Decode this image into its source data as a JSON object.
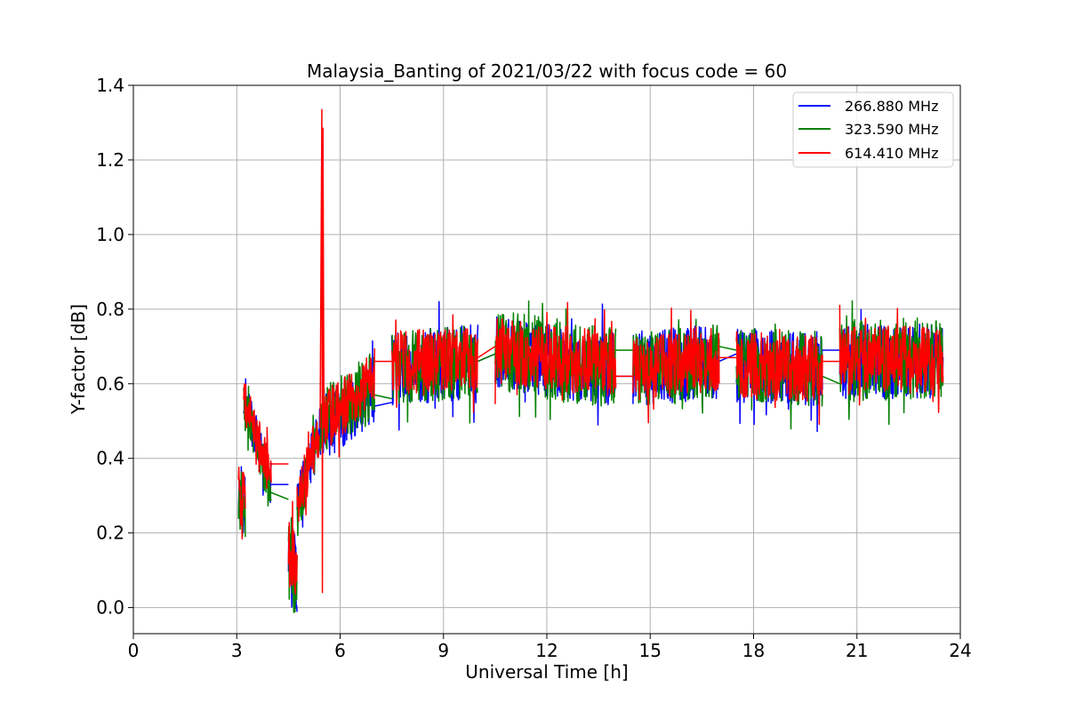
{
  "chart_data": {
    "type": "line",
    "title": "Malaysia_Banting of 2021/03/22 with focus code = 60",
    "xlabel": "Universal Time [h]",
    "ylabel": "Y-factor [dB]",
    "xlim": [
      0,
      24
    ],
    "ylim": [
      -0.07,
      1.4
    ],
    "xticks": [
      0,
      3,
      6,
      9,
      12,
      15,
      18,
      21,
      24
    ],
    "yticks": [
      0.0,
      0.2,
      0.4,
      0.6,
      0.8,
      1.0,
      1.2,
      1.4
    ],
    "xtick_labels": [
      "0",
      "3",
      "6",
      "9",
      "12",
      "15",
      "18",
      "21",
      "24"
    ],
    "ytick_labels": [
      "0.0",
      "0.2",
      "0.4",
      "0.6",
      "0.8",
      "1.0",
      "1.2",
      "1.4"
    ],
    "grid": true,
    "legend_position": "top-right",
    "series": [
      {
        "name": "266.880 MHz",
        "color": "#0000ff",
        "segments": [
          {
            "type": "noisy",
            "x0": 3.05,
            "x1": 3.25,
            "y0": 0.3,
            "y1": 0.3,
            "amp": 0.1
          },
          {
            "type": "noisy",
            "x0": 3.2,
            "x1": 4.0,
            "y0": 0.56,
            "y1": 0.33,
            "amp": 0.06
          },
          {
            "type": "flat",
            "x": [
              3.95,
              4.5
            ],
            "y": [
              0.33,
              0.33
            ]
          },
          {
            "type": "noisy",
            "x0": 4.5,
            "x1": 4.75,
            "y0": 0.15,
            "y1": 0.08,
            "amp": 0.1
          },
          {
            "type": "noisy",
            "x0": 4.75,
            "x1": 5.5,
            "y0": 0.27,
            "y1": 0.5,
            "amp": 0.07
          },
          {
            "type": "noisy",
            "x0": 5.5,
            "x1": 7.0,
            "y0": 0.48,
            "y1": 0.58,
            "amp": 0.09
          },
          {
            "type": "flat",
            "x": [
              7.0,
              7.5
            ],
            "y": [
              0.54,
              0.55
            ]
          },
          {
            "type": "noisy",
            "x0": 7.5,
            "x1": 10.0,
            "y0": 0.64,
            "y1": 0.66,
            "amp": 0.1
          },
          {
            "type": "flat",
            "x": [
              10.0,
              10.5
            ],
            "y": [
              0.66,
              0.68
            ]
          },
          {
            "type": "noisy",
            "x0": 10.5,
            "x1": 14.0,
            "y0": 0.68,
            "y1": 0.64,
            "amp": 0.1
          },
          {
            "type": "flat",
            "x": [
              14.0,
              14.5
            ],
            "y": [
              0.62,
              0.62
            ]
          },
          {
            "type": "noisy",
            "x0": 14.5,
            "x1": 17.0,
            "y0": 0.64,
            "y1": 0.66,
            "amp": 0.1
          },
          {
            "type": "flat",
            "x": [
              17.0,
              17.5
            ],
            "y": [
              0.66,
              0.68
            ]
          },
          {
            "type": "noisy",
            "x0": 17.5,
            "x1": 20.0,
            "y0": 0.65,
            "y1": 0.64,
            "amp": 0.1
          },
          {
            "type": "flat",
            "x": [
              20.0,
              20.5
            ],
            "y": [
              0.69,
              0.69
            ]
          },
          {
            "type": "noisy",
            "x0": 20.5,
            "x1": 23.5,
            "y0": 0.66,
            "y1": 0.66,
            "amp": 0.1
          }
        ]
      },
      {
        "name": "323.590 MHz",
        "color": "#008000",
        "segments": [
          {
            "type": "noisy",
            "x0": 3.05,
            "x1": 3.25,
            "y0": 0.28,
            "y1": 0.28,
            "amp": 0.1
          },
          {
            "type": "noisy",
            "x0": 3.2,
            "x1": 4.0,
            "y0": 0.55,
            "y1": 0.31,
            "amp": 0.06
          },
          {
            "type": "flat",
            "x": [
              3.95,
              4.5
            ],
            "y": [
              0.31,
              0.29
            ]
          },
          {
            "type": "noisy",
            "x0": 4.5,
            "x1": 4.75,
            "y0": 0.12,
            "y1": 0.06,
            "amp": 0.1
          },
          {
            "type": "noisy",
            "x0": 4.75,
            "x1": 5.5,
            "y0": 0.26,
            "y1": 0.5,
            "amp": 0.07
          },
          {
            "type": "noisy",
            "x0": 5.5,
            "x1": 7.0,
            "y0": 0.5,
            "y1": 0.6,
            "amp": 0.09
          },
          {
            "type": "flat",
            "x": [
              7.0,
              7.5
            ],
            "y": [
              0.57,
              0.56
            ]
          },
          {
            "type": "noisy",
            "x0": 7.5,
            "x1": 10.0,
            "y0": 0.64,
            "y1": 0.66,
            "amp": 0.1
          },
          {
            "type": "flat",
            "x": [
              10.0,
              10.5
            ],
            "y": [
              0.66,
              0.68
            ]
          },
          {
            "type": "noisy",
            "x0": 10.5,
            "x1": 14.0,
            "y0": 0.69,
            "y1": 0.64,
            "amp": 0.11
          },
          {
            "type": "flat",
            "x": [
              14.0,
              14.5
            ],
            "y": [
              0.69,
              0.69
            ]
          },
          {
            "type": "noisy",
            "x0": 14.5,
            "x1": 17.0,
            "y0": 0.64,
            "y1": 0.66,
            "amp": 0.1
          },
          {
            "type": "flat",
            "x": [
              17.0,
              17.5
            ],
            "y": [
              0.7,
              0.69
            ]
          },
          {
            "type": "noisy",
            "x0": 17.5,
            "x1": 20.0,
            "y0": 0.65,
            "y1": 0.64,
            "amp": 0.1
          },
          {
            "type": "flat",
            "x": [
              20.0,
              20.5
            ],
            "y": [
              0.62,
              0.6
            ]
          },
          {
            "type": "noisy",
            "x0": 20.5,
            "x1": 23.5,
            "y0": 0.66,
            "y1": 0.67,
            "amp": 0.11
          }
        ]
      },
      {
        "name": "614.410 MHz",
        "color": "#ff0000",
        "segments": [
          {
            "type": "noisy",
            "x0": 3.05,
            "x1": 3.25,
            "y0": 0.32,
            "y1": 0.32,
            "amp": 0.1
          },
          {
            "type": "noisy",
            "x0": 3.2,
            "x1": 4.0,
            "y0": 0.56,
            "y1": 0.35,
            "amp": 0.06
          },
          {
            "type": "flat",
            "x": [
              3.95,
              4.5
            ],
            "y": [
              0.385,
              0.385
            ]
          },
          {
            "type": "noisy",
            "x0": 4.5,
            "x1": 4.75,
            "y0": 0.15,
            "y1": 0.08,
            "amp": 0.1
          },
          {
            "type": "noisy",
            "x0": 4.75,
            "x1": 5.4,
            "y0": 0.27,
            "y1": 0.48,
            "amp": 0.07
          },
          {
            "type": "spike",
            "x": 5.47,
            "y_base": 0.48,
            "y_min": 0.04,
            "y_max": 1.335
          },
          {
            "type": "noisy",
            "x0": 5.55,
            "x1": 7.0,
            "y0": 0.5,
            "y1": 0.62,
            "amp": 0.08
          },
          {
            "type": "flat",
            "x": [
              7.0,
              7.5
            ],
            "y": [
              0.66,
              0.66
            ]
          },
          {
            "type": "noisy",
            "x0": 7.5,
            "x1": 10.0,
            "y0": 0.65,
            "y1": 0.67,
            "amp": 0.09
          },
          {
            "type": "flat",
            "x": [
              10.0,
              10.5
            ],
            "y": [
              0.67,
              0.7
            ]
          },
          {
            "type": "noisy",
            "x0": 10.5,
            "x1": 14.0,
            "y0": 0.69,
            "y1": 0.65,
            "amp": 0.09
          },
          {
            "type": "flat",
            "x": [
              14.0,
              14.5
            ],
            "y": [
              0.62,
              0.62
            ]
          },
          {
            "type": "noisy",
            "x0": 14.5,
            "x1": 17.0,
            "y0": 0.64,
            "y1": 0.67,
            "amp": 0.09
          },
          {
            "type": "flat",
            "x": [
              17.0,
              17.5
            ],
            "y": [
              0.67,
              0.67
            ]
          },
          {
            "type": "noisy",
            "x0": 17.5,
            "x1": 20.0,
            "y0": 0.65,
            "y1": 0.64,
            "amp": 0.09
          },
          {
            "type": "flat",
            "x": [
              20.0,
              20.5
            ],
            "y": [
              0.66,
              0.66
            ]
          },
          {
            "type": "noisy",
            "x0": 20.5,
            "x1": 23.5,
            "y0": 0.67,
            "y1": 0.66,
            "amp": 0.09
          }
        ]
      }
    ]
  }
}
